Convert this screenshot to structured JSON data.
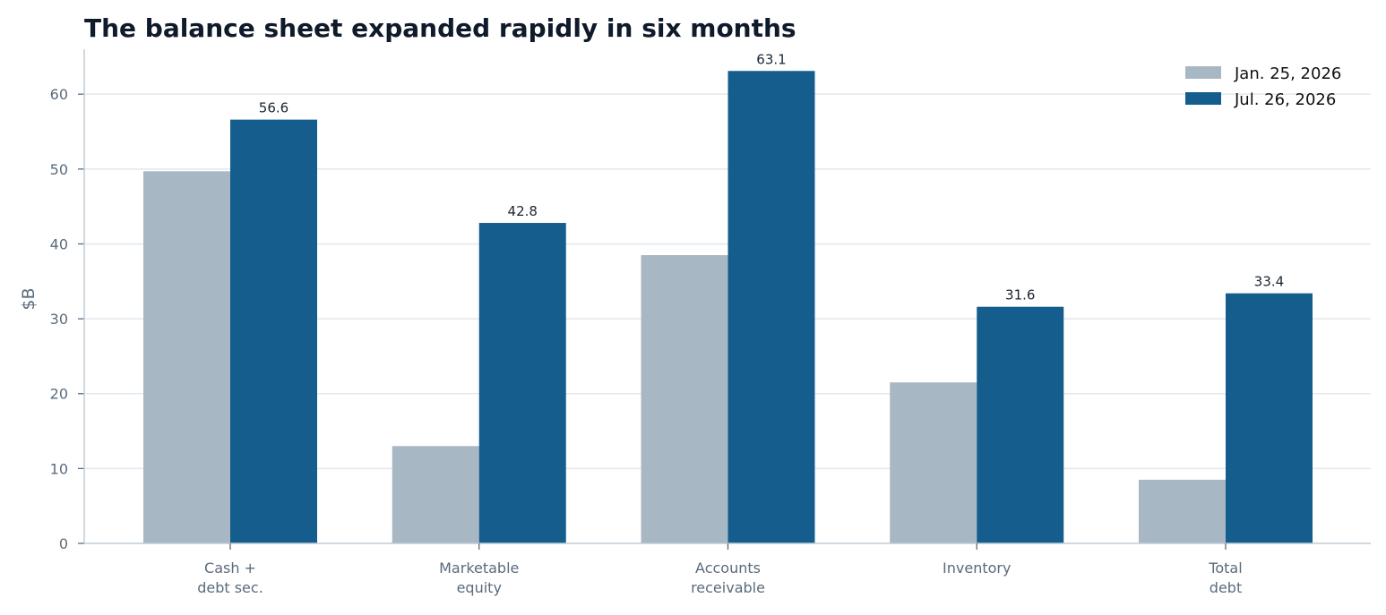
{
  "chart_data": {
    "type": "bar",
    "title": "The balance sheet expanded rapidly in six months",
    "xlabel": "",
    "ylabel": "$B",
    "ylim": [
      0,
      66
    ],
    "yticks": [
      0,
      10,
      20,
      30,
      40,
      50,
      60
    ],
    "grid": true,
    "legend_position": "top-right",
    "categories": [
      [
        "Cash +",
        "debt sec."
      ],
      [
        "Marketable",
        "equity"
      ],
      [
        "Accounts",
        "receivable"
      ],
      [
        "Inventory"
      ],
      [
        "Total",
        "debt"
      ]
    ],
    "series": [
      {
        "name": "Jan. 25, 2026",
        "color": "#a8b7c4",
        "values": [
          49.7,
          13.0,
          38.5,
          21.5,
          8.5
        ],
        "show_labels": false
      },
      {
        "name": "Jul. 26, 2026",
        "color": "#155d8d",
        "values": [
          56.6,
          42.8,
          63.1,
          31.6,
          33.4
        ],
        "show_labels": true
      }
    ]
  }
}
